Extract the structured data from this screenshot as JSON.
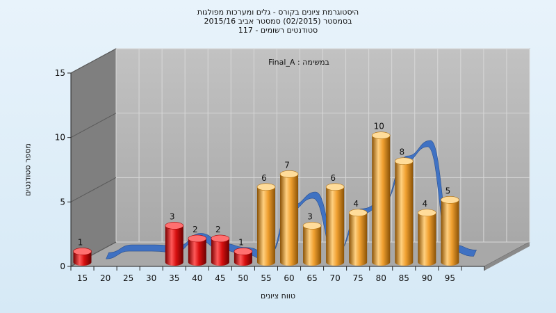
{
  "chart_data": {
    "type": "bar",
    "title_lines": [
      "היסטוגרמת ציונים בקורס - גלים ומערכות מפולגות",
      "בסמסטר  (02/2015)  סמסטר אביב 2015/16",
      "סטודנטים רשומים - 117"
    ],
    "subtitle": "במשימה : Final_A",
    "xlabel": "טווח ציונים",
    "ylabel": "מספר סטודנטים",
    "x_ticks": [
      "15",
      "20",
      "25",
      "30",
      "35",
      "40",
      "45",
      "50",
      "55",
      "60",
      "65",
      "70",
      "75",
      "80",
      "85",
      "90",
      "95"
    ],
    "y_ticks": [
      "0",
      "5",
      "10",
      "15"
    ],
    "ylim": [
      0,
      15
    ],
    "grid": true,
    "bars": [
      {
        "x": 15,
        "value": 1,
        "label": "1",
        "color": "red"
      },
      {
        "x": 35,
        "value": 3,
        "label": "3",
        "color": "red"
      },
      {
        "x": 40,
        "value": 2,
        "label": "2",
        "color": "red"
      },
      {
        "x": 45,
        "value": 2,
        "label": "2",
        "color": "red"
      },
      {
        "x": 50,
        "value": 1,
        "label": "1",
        "color": "red"
      },
      {
        "x": 55,
        "value": 6,
        "label": "6",
        "color": "orange"
      },
      {
        "x": 60,
        "value": 7,
        "label": "7",
        "color": "orange"
      },
      {
        "x": 65,
        "value": 3,
        "label": "3",
        "color": "orange"
      },
      {
        "x": 70,
        "value": 6,
        "label": "6",
        "color": "orange"
      },
      {
        "x": 75,
        "value": 4,
        "label": "4",
        "color": "orange"
      },
      {
        "x": 80,
        "value": 10,
        "label": "10",
        "color": "orange"
      },
      {
        "x": 85,
        "value": 8,
        "label": "8",
        "color": "orange"
      },
      {
        "x": 90,
        "value": 4,
        "label": "4",
        "color": "orange"
      },
      {
        "x": 95,
        "value": 5,
        "label": "5",
        "color": "orange"
      }
    ],
    "curve": {
      "x": [
        20,
        25,
        30,
        35,
        40,
        45,
        50,
        55,
        60,
        65,
        70,
        75,
        80,
        85,
        90,
        95,
        100
      ],
      "y": [
        0.8,
        1.4,
        1.4,
        1.3,
        2.3,
        1.5,
        1.2,
        0.7,
        4.5,
        5.5,
        1.0,
        4.2,
        4.8,
        8.3,
        9.5,
        1.4,
        1.0
      ]
    },
    "colors": {
      "red": "#e01818",
      "orange": "#f0a030",
      "curve": "#3a6fc4",
      "wall": "#7f7f7f",
      "back": "#b8b8b8",
      "floor": "#a8a8a8"
    }
  }
}
